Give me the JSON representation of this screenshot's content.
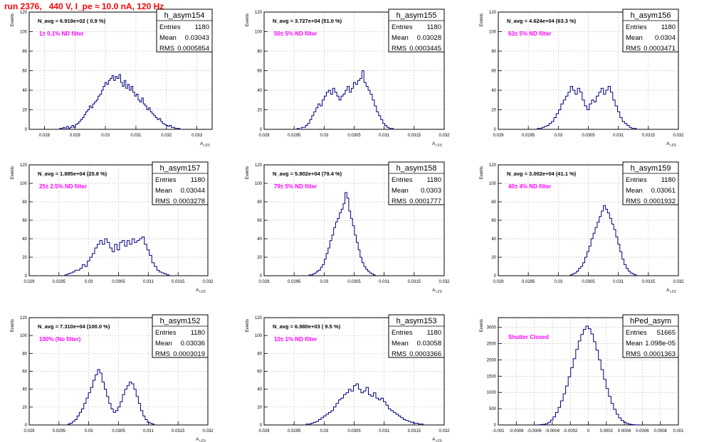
{
  "page_title": "run 2376,   440 V, I_pe ≈ 10.0 nA, 120 Hz",
  "colors": {
    "title": "#ff0000",
    "histogram": "#000080",
    "filter_label": "#ff00ff",
    "grid": "#c8c8c8",
    "axis": "#000000"
  },
  "chart_data": [
    {
      "type": "bar",
      "name": "h_asym154",
      "nav_label": "N_avg = 6.919e+02 ( 0.9 %)",
      "filter_label": "1± 0.1% ND filter",
      "stats": {
        "entries": "1180",
        "mean": "0.03043",
        "rms": "0.0005854"
      },
      "xlabel": "A_LED",
      "ylabel": "Events",
      "xlim": [
        0.0275,
        0.0335
      ],
      "ylim": [
        0,
        120
      ],
      "xticks": [
        0.028,
        0.029,
        0.03,
        0.031,
        0.032,
        0.033
      ],
      "xtick_labels": [
        "0.028",
        "0.029",
        "0.03",
        "0.031",
        "0.032",
        "0.033"
      ],
      "yticks": [
        0,
        20,
        40,
        60,
        80,
        100,
        120
      ],
      "bins": {
        "start": 0.0285,
        "end": 0.0325,
        "values": [
          1,
          1,
          2,
          0,
          3,
          1,
          2,
          4,
          2,
          5,
          6,
          8,
          10,
          12,
          15,
          18,
          20,
          24,
          22,
          26,
          28,
          30,
          34,
          36,
          40,
          44,
          48,
          46,
          50,
          52,
          55,
          50,
          54,
          52,
          56,
          48,
          44,
          50,
          42,
          46,
          40,
          44,
          38,
          34,
          36,
          30,
          28,
          32,
          26,
          24,
          20,
          22,
          18,
          16,
          14,
          12,
          10,
          11,
          8,
          6,
          5,
          4,
          3,
          4,
          2,
          2,
          1,
          1,
          1,
          0
        ]
      }
    },
    {
      "type": "bar",
      "name": "h_asym155",
      "nav_label": "N_avg = 3.727e+04 (51.0 %)",
      "filter_label": "50± 5% ND filter",
      "stats": {
        "entries": "1180",
        "mean": "0.03028",
        "rms": "0.0003445"
      },
      "xlabel": "A_LED",
      "ylabel": "Events",
      "xlim": [
        0.029,
        0.032
      ],
      "ylim": [
        0,
        120
      ],
      "xticks": [
        0.029,
        0.0295,
        0.03,
        0.0305,
        0.031,
        0.0315,
        0.032
      ],
      "xtick_labels": [
        "0.029",
        "0.0295",
        "0.03",
        "0.0305",
        "0.031",
        "0.0315",
        "0.032"
      ],
      "yticks": [
        0,
        20,
        40,
        60,
        80,
        100,
        120
      ],
      "bins": {
        "start": 0.02955,
        "end": 0.03115,
        "values": [
          1,
          0,
          2,
          2,
          4,
          6,
          10,
          14,
          18,
          22,
          26,
          24,
          30,
          34,
          38,
          40,
          36,
          42,
          38,
          34,
          30,
          34,
          36,
          40,
          44,
          38,
          42,
          48,
          46,
          50,
          52,
          60,
          48,
          44,
          40,
          36,
          30,
          24,
          18,
          14,
          10,
          6,
          4,
          2,
          1,
          1
        ]
      }
    },
    {
      "type": "bar",
      "name": "h_asym156",
      "nav_label": "N_avg = 4.624e+04 (63.3 %)",
      "filter_label": "63± 5% ND filter",
      "stats": {
        "entries": "1180",
        "mean": "0.0304",
        "rms": "0.0003471"
      },
      "xlabel": "A_LED",
      "ylabel": "Events",
      "xlim": [
        0.029,
        0.032
      ],
      "ylim": [
        0,
        120
      ],
      "xticks": [
        0.029,
        0.0295,
        0.03,
        0.0305,
        0.031,
        0.0315,
        0.032
      ],
      "xtick_labels": [
        "0.029",
        "0.0295",
        "0.03",
        "0.0305",
        "0.031",
        "0.0315",
        "0.032"
      ],
      "yticks": [
        0,
        20,
        40,
        60,
        80,
        100,
        120
      ],
      "bins": {
        "start": 0.02965,
        "end": 0.0313,
        "values": [
          1,
          1,
          2,
          3,
          4,
          6,
          8,
          12,
          16,
          20,
          26,
          30,
          34,
          38,
          44,
          40,
          36,
          42,
          38,
          30,
          24,
          20,
          26,
          30,
          28,
          34,
          38,
          42,
          36,
          40,
          44,
          38,
          30,
          24,
          18,
          12,
          8,
          6,
          4,
          2,
          1,
          1
        ]
      }
    },
    {
      "type": "bar",
      "name": "h_asym157",
      "nav_label": "N_avg = 1.885e+04 (25.8 %)",
      "filter_label": "25± 2.5% ND filter",
      "stats": {
        "entries": "1180",
        "mean": "0.03044",
        "rms": "0.0003278"
      },
      "xlabel": "A_LED",
      "ylabel": "Events",
      "xlim": [
        0.029,
        0.032
      ],
      "ylim": [
        0,
        120
      ],
      "xticks": [
        0.029,
        0.0295,
        0.03,
        0.0305,
        0.031,
        0.0315,
        0.032
      ],
      "xtick_labels": [
        "0.029",
        "0.0295",
        "0.03",
        "0.0305",
        "0.031",
        "0.0315",
        "0.032"
      ],
      "yticks": [
        0,
        20,
        40,
        60,
        80,
        100,
        120
      ],
      "bins": {
        "start": 0.0296,
        "end": 0.03135,
        "values": [
          1,
          2,
          3,
          4,
          6,
          6,
          8,
          12,
          10,
          16,
          20,
          24,
          30,
          34,
          38,
          34,
          40,
          36,
          30,
          26,
          34,
          28,
          36,
          38,
          32,
          38,
          34,
          40,
          36,
          38,
          40,
          42,
          34,
          28,
          22,
          14,
          10,
          6,
          4,
          3,
          2,
          1
        ]
      }
    },
    {
      "type": "bar",
      "name": "h_asym158",
      "nav_label": "N_avg = 5.802e+04 (79.4 %)",
      "filter_label": "79± 5% ND filter",
      "stats": {
        "entries": "1180",
        "mean": "0.0303",
        "rms": "0.0001777"
      },
      "xlabel": "A_LED",
      "ylabel": "Events",
      "xlim": [
        0.029,
        0.032
      ],
      "ylim": [
        0,
        120
      ],
      "xticks": [
        0.029,
        0.0295,
        0.03,
        0.0305,
        0.031,
        0.0315,
        0.032
      ],
      "xtick_labels": [
        "0.029",
        "0.0295",
        "0.03",
        "0.0305",
        "0.031",
        "0.0315",
        "0.032"
      ],
      "yticks": [
        0,
        20,
        40,
        60,
        80,
        100,
        120
      ],
      "bins": {
        "start": 0.02975,
        "end": 0.03085,
        "values": [
          1,
          1,
          2,
          3,
          5,
          6,
          9,
          12,
          18,
          24,
          30,
          38,
          44,
          52,
          58,
          62,
          68,
          72,
          78,
          90,
          84,
          70,
          62,
          54,
          44,
          36,
          28,
          20,
          14,
          10,
          7,
          5,
          3,
          2,
          1
        ]
      }
    },
    {
      "type": "bar",
      "name": "h_asym159",
      "nav_label": "N_avg = 3.002e+04 (41.1 %)",
      "filter_label": "40± 4% ND filter",
      "stats": {
        "entries": "1180",
        "mean": "0.03061",
        "rms": "0.0001932"
      },
      "xlabel": "A_LED",
      "ylabel": "Events",
      "xlim": [
        0.029,
        0.032
      ],
      "ylim": [
        0,
        120
      ],
      "xticks": [
        0.029,
        0.0295,
        0.03,
        0.0305,
        0.031,
        0.0315,
        0.032
      ],
      "xtick_labels": [
        "0.029",
        "0.0295",
        "0.03",
        "0.0305",
        "0.031",
        "0.0315",
        "0.032"
      ],
      "yticks": [
        0,
        20,
        40,
        60,
        80,
        100,
        120
      ],
      "bins": {
        "start": 0.0302,
        "end": 0.0313,
        "values": [
          1,
          2,
          3,
          5,
          8,
          10,
          14,
          20,
          26,
          32,
          40,
          46,
          52,
          58,
          64,
          70,
          76,
          72,
          68,
          62,
          56,
          50,
          42,
          34,
          26,
          18,
          12,
          8,
          5,
          3,
          2,
          1
        ]
      }
    },
    {
      "type": "bar",
      "name": "h_asym152",
      "nav_label": "N_avg = 7.310e+04 (100.0 %)",
      "filter_label": "100% (No filter)",
      "stats": {
        "entries": "1180",
        "mean": "0.03036",
        "rms": "0.0003019"
      },
      "xlabel": "A_LED",
      "ylabel": "Events",
      "xlim": [
        0.029,
        0.032
      ],
      "ylim": [
        0,
        120
      ],
      "xticks": [
        0.029,
        0.0295,
        0.03,
        0.0305,
        0.031,
        0.0315,
        0.032
      ],
      "xtick_labels": [
        "0.029",
        "0.0295",
        "0.03",
        "0.0305",
        "0.031",
        "0.0315",
        "0.032"
      ],
      "yticks": [
        0,
        20,
        40,
        60,
        80,
        100,
        120
      ],
      "bins": {
        "start": 0.02965,
        "end": 0.0311,
        "values": [
          1,
          2,
          4,
          6,
          10,
          14,
          18,
          24,
          30,
          36,
          42,
          50,
          56,
          62,
          58,
          48,
          40,
          32,
          24,
          18,
          14,
          16,
          20,
          26,
          34,
          40,
          44,
          48,
          46,
          40,
          32,
          24,
          16,
          10,
          6,
          3,
          2,
          1
        ]
      }
    },
    {
      "type": "bar",
      "name": "h_asym153",
      "nav_label": "N_avg = 6.980e+03 ( 9.5 %)",
      "filter_label": "10± 1% ND filter",
      "stats": {
        "entries": "1180",
        "mean": "0.03058",
        "rms": "0.0003366"
      },
      "xlabel": "A_LED",
      "ylabel": "Events",
      "xlim": [
        0.029,
        0.032
      ],
      "ylim": [
        0,
        120
      ],
      "xticks": [
        0.029,
        0.0295,
        0.03,
        0.0305,
        0.031,
        0.0315,
        0.032
      ],
      "xtick_labels": [
        "0.029",
        "0.0295",
        "0.03",
        "0.0305",
        "0.031",
        "0.0315",
        "0.032"
      ],
      "yticks": [
        0,
        20,
        40,
        60,
        80,
        100,
        120
      ],
      "bins": {
        "start": 0.0297,
        "end": 0.03165,
        "values": [
          1,
          1,
          2,
          3,
          4,
          6,
          8,
          10,
          12,
          14,
          16,
          20,
          24,
          28,
          30,
          34,
          36,
          40,
          38,
          44,
          46,
          40,
          36,
          38,
          42,
          34,
          32,
          36,
          30,
          28,
          30,
          26,
          22,
          18,
          16,
          14,
          12,
          10,
          8,
          6,
          5,
          4,
          3,
          2,
          2,
          1,
          1
        ]
      }
    },
    {
      "type": "bar",
      "name": "hPed_asym",
      "nav_label": "",
      "filter_label": "Shutter Closed",
      "stats": {
        "entries": "51665",
        "mean": "1.098e-05",
        "rms": "0.0001363"
      },
      "xlabel": "",
      "ylabel": "Events",
      "xlim": [
        -0.001,
        0.001
      ],
      "ylim": [
        0,
        3300
      ],
      "xticks": [
        -0.001,
        -0.0008,
        -0.0006,
        -0.0004,
        -0.0002,
        0,
        0.0002,
        0.0004,
        0.0006,
        0.0008,
        0.001
      ],
      "xtick_labels": [
        "-0.001",
        "-0.0008",
        "-0.0006",
        "-0.0004",
        "-0.0002",
        "0",
        "0.0002",
        "0.0004",
        "0.0006",
        "0.0008",
        "0.001"
      ],
      "yticks": [
        0,
        500,
        1000,
        1500,
        2000,
        2500,
        3000
      ],
      "bins": {
        "start": -0.00056,
        "end": 0.00056,
        "values": [
          5,
          10,
          20,
          40,
          80,
          150,
          250,
          380,
          540,
          740,
          960,
          1200,
          1480,
          1760,
          2040,
          2320,
          2580,
          2780,
          2940,
          3040,
          2960,
          2800,
          2560,
          2300,
          2000,
          1700,
          1400,
          1120,
          880,
          660,
          480,
          330,
          220,
          140,
          80,
          45,
          25,
          12,
          6,
          3
        ]
      }
    }
  ]
}
